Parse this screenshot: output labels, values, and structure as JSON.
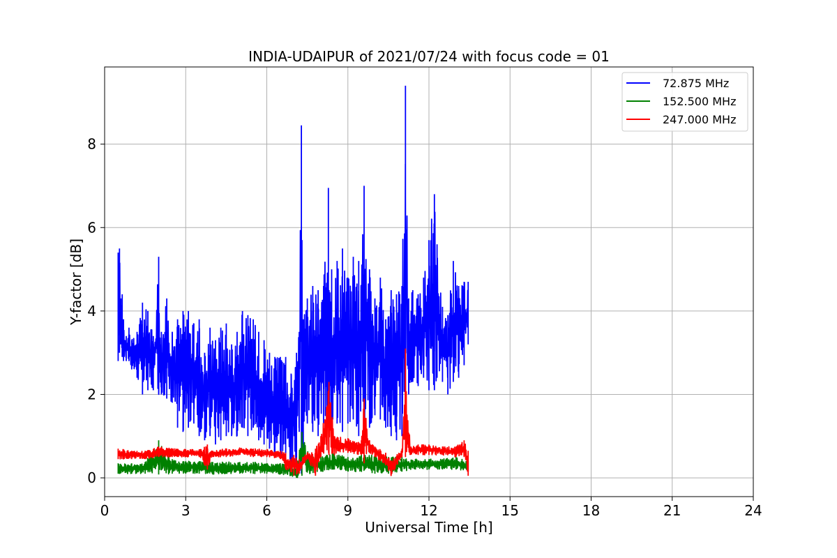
{
  "chart_data": {
    "type": "line",
    "title": "INDIA-UDAIPUR of 2021/07/24 with focus code = 01",
    "xlabel": "Universal Time [h]",
    "ylabel": "Y-factor [dB]",
    "xlim": [
      0,
      24
    ],
    "ylim": [
      -0.45,
      9.85
    ],
    "xticks": [
      "0",
      "3",
      "6",
      "9",
      "12",
      "15",
      "18",
      "21",
      "24"
    ],
    "yticks": [
      "0",
      "2",
      "4",
      "6",
      "8"
    ],
    "grid": true,
    "legend_position": "top-right",
    "series": [
      {
        "name": "  72.875 MHz",
        "color": "#0000ff",
        "x": [
          0.5,
          0.55,
          0.6,
          0.65,
          0.7,
          0.8,
          0.9,
          1.0,
          1.2,
          1.4,
          1.6,
          1.8,
          2.0,
          2.1,
          2.3,
          2.5,
          2.7,
          2.9,
          3.1,
          3.3,
          3.5,
          3.7,
          3.9,
          4.1,
          4.3,
          4.5,
          4.7,
          4.9,
          5.1,
          5.3,
          5.5,
          5.7,
          5.9,
          6.1,
          6.3,
          6.5,
          6.7,
          6.9,
          7.1,
          7.2,
          7.28,
          7.35,
          7.5,
          7.7,
          7.9,
          8.1,
          8.28,
          8.4,
          8.6,
          8.8,
          9.0,
          9.2,
          9.4,
          9.6,
          9.8,
          10.0,
          10.2,
          10.4,
          10.6,
          10.8,
          11.0,
          11.13,
          11.25,
          11.4,
          11.6,
          11.8,
          12.0,
          12.2,
          12.3,
          12.5,
          12.7,
          12.9,
          13.1,
          13.3,
          13.45
        ],
        "hi": [
          5.4,
          5.5,
          4.3,
          4.4,
          3.8,
          3.4,
          3.6,
          3.3,
          3.5,
          4.2,
          4.0,
          3.4,
          5.3,
          3.5,
          4.3,
          3.5,
          3.8,
          4.0,
          4.0,
          3.7,
          3.8,
          3.0,
          3.6,
          3.3,
          3.6,
          3.7,
          3.2,
          3.5,
          4.0,
          3.9,
          3.8,
          3.5,
          3.3,
          3.0,
          2.9,
          2.9,
          2.9,
          2.5,
          3.0,
          3.5,
          8.45,
          3.8,
          4.3,
          4.6,
          4.5,
          4.6,
          6.95,
          5.0,
          5.2,
          5.5,
          4.8,
          5.3,
          5.2,
          7.0,
          5.0,
          4.3,
          4.8,
          3.8,
          4.5,
          4.4,
          4.6,
          9.4,
          4.3,
          4.5,
          4.4,
          4.8,
          5.7,
          6.8,
          5.6,
          4.1,
          3.9,
          5.2,
          4.6,
          4.7,
          4.7
        ],
        "lo": [
          2.8,
          3.0,
          3.2,
          2.9,
          2.8,
          2.8,
          2.8,
          2.6,
          2.4,
          2.0,
          2.1,
          2.1,
          2.0,
          2.0,
          1.9,
          1.8,
          1.2,
          1.1,
          1.2,
          1.3,
          1.0,
          0.9,
          1.0,
          0.8,
          0.9,
          1.0,
          1.0,
          1.0,
          1.2,
          1.0,
          1.2,
          0.9,
          0.8,
          0.7,
          0.6,
          0.5,
          0.4,
          0.3,
          0.2,
          1.1,
          0.1,
          0.6,
          1.3,
          1.1,
          1.0,
          1.3,
          1.5,
          1.2,
          1.3,
          1.1,
          1.3,
          1.4,
          1.0,
          1.1,
          1.2,
          1.5,
          1.4,
          1.2,
          1.0,
          0.9,
          1.0,
          1.5,
          2.0,
          2.3,
          2.2,
          2.4,
          2.1,
          2.1,
          2.4,
          2.3,
          2.0,
          2.3,
          2.4,
          2.7,
          3.2
        ]
      },
      {
        "name": "152.500 MHz",
        "color": "#008000",
        "x": [
          0.5,
          1.0,
          1.5,
          2.0,
          2.5,
          3.0,
          3.5,
          4.0,
          4.5,
          5.0,
          5.5,
          6.0,
          6.5,
          6.9,
          7.1,
          7.3,
          7.6,
          8.0,
          8.5,
          9.0,
          9.5,
          10.0,
          10.5,
          11.0,
          11.5,
          12.0,
          12.5,
          13.0,
          13.45
        ],
        "hi": [
          0.35,
          0.35,
          0.38,
          0.9,
          0.45,
          0.4,
          0.4,
          0.38,
          0.38,
          0.38,
          0.38,
          0.35,
          0.35,
          0.3,
          0.2,
          1.1,
          0.5,
          0.5,
          0.6,
          0.5,
          0.55,
          0.55,
          0.5,
          0.5,
          0.45,
          0.45,
          0.45,
          0.5,
          0.4
        ],
        "lo": [
          0.1,
          0.1,
          0.1,
          0.08,
          0.1,
          0.1,
          0.1,
          0.08,
          0.1,
          0.1,
          0.1,
          0.1,
          0.08,
          0.05,
          0.0,
          0.05,
          0.1,
          0.15,
          0.2,
          0.15,
          0.15,
          0.1,
          0.1,
          0.15,
          0.2,
          0.2,
          0.2,
          0.2,
          0.15
        ]
      },
      {
        "name": "247.000 MHz",
        "color": "#ff0000",
        "x": [
          0.5,
          1.0,
          1.5,
          2.0,
          2.5,
          3.0,
          3.5,
          3.8,
          4.0,
          4.5,
          5.0,
          5.5,
          6.0,
          6.5,
          6.7,
          7.0,
          7.2,
          7.5,
          7.8,
          8.0,
          8.3,
          8.5,
          9.0,
          9.5,
          9.6,
          9.8,
          10.0,
          10.4,
          10.6,
          11.0,
          11.13,
          11.3,
          11.6,
          12.0,
          12.5,
          13.0,
          13.3,
          13.45
        ],
        "hi": [
          0.7,
          0.65,
          0.65,
          0.75,
          0.7,
          0.68,
          0.68,
          0.8,
          0.65,
          0.7,
          0.72,
          0.7,
          0.68,
          0.65,
          0.6,
          0.55,
          0.45,
          0.6,
          0.7,
          1.0,
          2.3,
          1.0,
          0.95,
          0.9,
          1.9,
          0.9,
          0.75,
          0.6,
          0.4,
          0.7,
          3.1,
          0.75,
          0.8,
          0.8,
          0.75,
          0.75,
          0.9,
          0.65
        ],
        "lo": [
          0.45,
          0.45,
          0.45,
          0.5,
          0.5,
          0.5,
          0.5,
          0.2,
          0.5,
          0.5,
          0.55,
          0.5,
          0.5,
          0.45,
          0.2,
          0.05,
          0.1,
          0.45,
          0.05,
          0.5,
          0.55,
          0.55,
          0.6,
          0.55,
          0.35,
          0.6,
          0.5,
          0.3,
          0.05,
          0.5,
          0.5,
          0.55,
          0.55,
          0.55,
          0.55,
          0.5,
          0.5,
          0.05
        ]
      }
    ]
  }
}
